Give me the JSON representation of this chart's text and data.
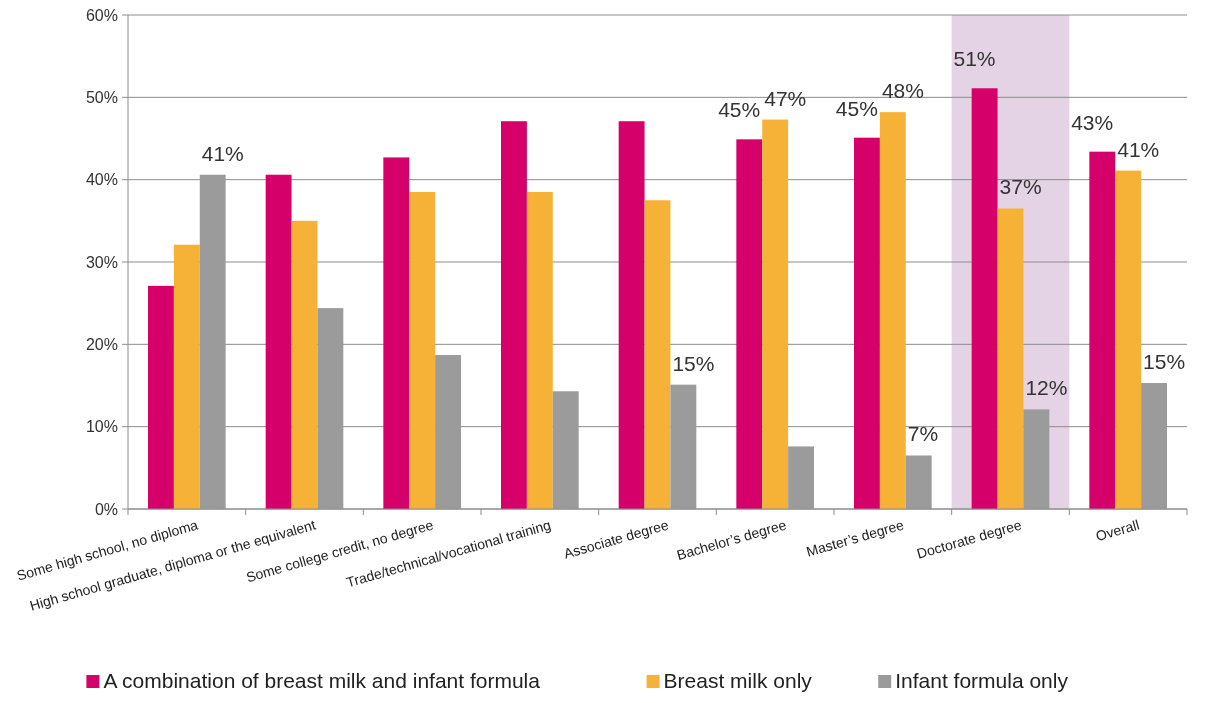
{
  "chart_data": {
    "type": "bar",
    "categories": [
      "Some high school, no diploma",
      "High school graduate, diploma or the equivalent",
      "Some college credit, no degree",
      "Trade/technical/vocational training",
      "Associate degree",
      "Bachelor’s degree",
      "Master’s degree",
      "Doctorate degree",
      "Overall"
    ],
    "series": [
      {
        "name": "A combination of breast milk and infant formula",
        "color": "#d6006b",
        "values": [
          27.1,
          40.6,
          42.7,
          47.1,
          47.1,
          44.9,
          45.1,
          51.1,
          43.4
        ],
        "value_labels": [
          null,
          null,
          null,
          null,
          null,
          "45%",
          "45%",
          "51%",
          "43%"
        ]
      },
      {
        "name": "Breast milk only",
        "color": "#f5b236",
        "values": [
          32.1,
          35.0,
          38.5,
          38.5,
          37.5,
          47.3,
          48.2,
          36.5,
          41.1
        ],
        "value_labels": [
          null,
          null,
          null,
          null,
          null,
          "47%",
          "48%",
          "37%",
          "41%"
        ]
      },
      {
        "name": "Infant formula only",
        "color": "#9b9b9b",
        "values": [
          40.6,
          24.4,
          18.7,
          14.3,
          15.1,
          7.6,
          6.5,
          12.1,
          15.3
        ],
        "value_labels": [
          "41%",
          null,
          null,
          null,
          "15%",
          null,
          "7%",
          "12%",
          "15%"
        ]
      }
    ],
    "ylim": [
      0,
      60
    ],
    "yticks": [
      {
        "value": 0,
        "label": "0%"
      },
      {
        "value": 10,
        "label": "10%"
      },
      {
        "value": 20,
        "label": "20%"
      },
      {
        "value": 30,
        "label": "30%"
      },
      {
        "value": 40,
        "label": "40%"
      },
      {
        "value": 50,
        "label": "50%"
      },
      {
        "value": 60,
        "label": "60%"
      }
    ],
    "grid": "y",
    "legend": "bottom",
    "bands": [
      {
        "axis": "x",
        "from": "Doctorate degree",
        "to": "Doctorate degree",
        "color": "#e3d3e4"
      }
    ]
  }
}
